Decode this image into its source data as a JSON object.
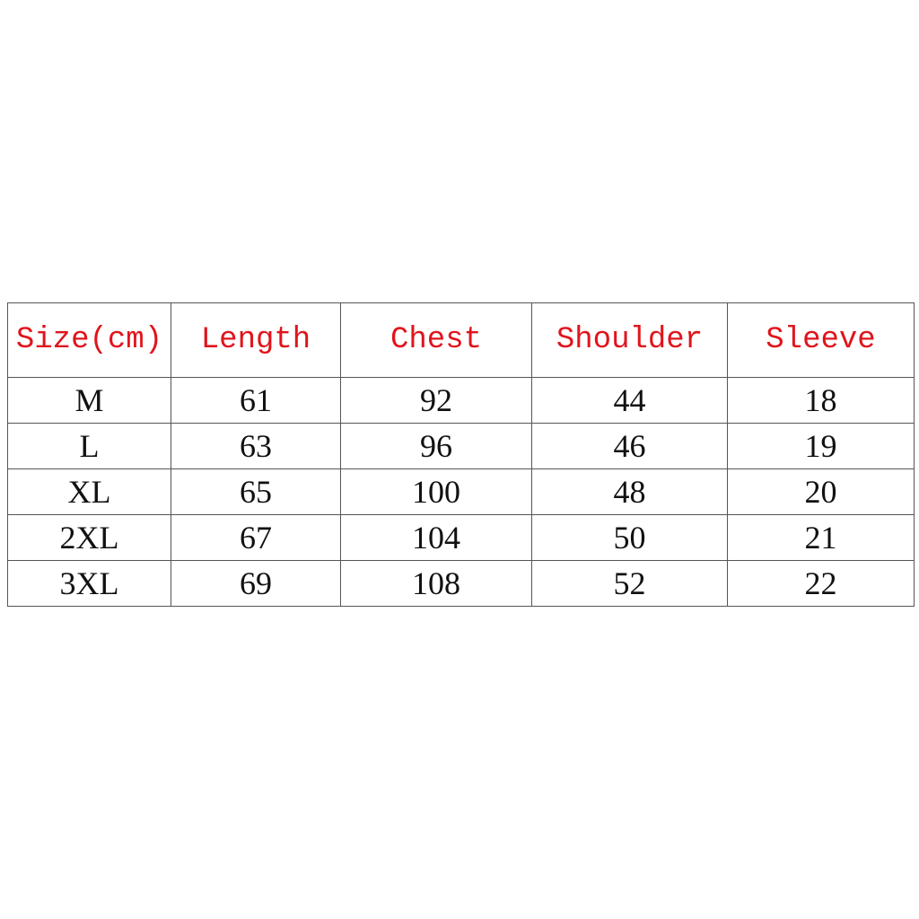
{
  "table": {
    "header": [
      "Size(cm)",
      "Length",
      "Chest",
      "Shoulder",
      "Sleeve"
    ],
    "rows": [
      [
        "M",
        61,
        92,
        44,
        18
      ],
      [
        "L",
        63,
        96,
        46,
        19
      ],
      [
        "XL",
        65,
        100,
        48,
        20
      ],
      [
        "2XL",
        67,
        104,
        50,
        21
      ],
      [
        "3XL",
        69,
        108,
        52,
        22
      ]
    ]
  }
}
